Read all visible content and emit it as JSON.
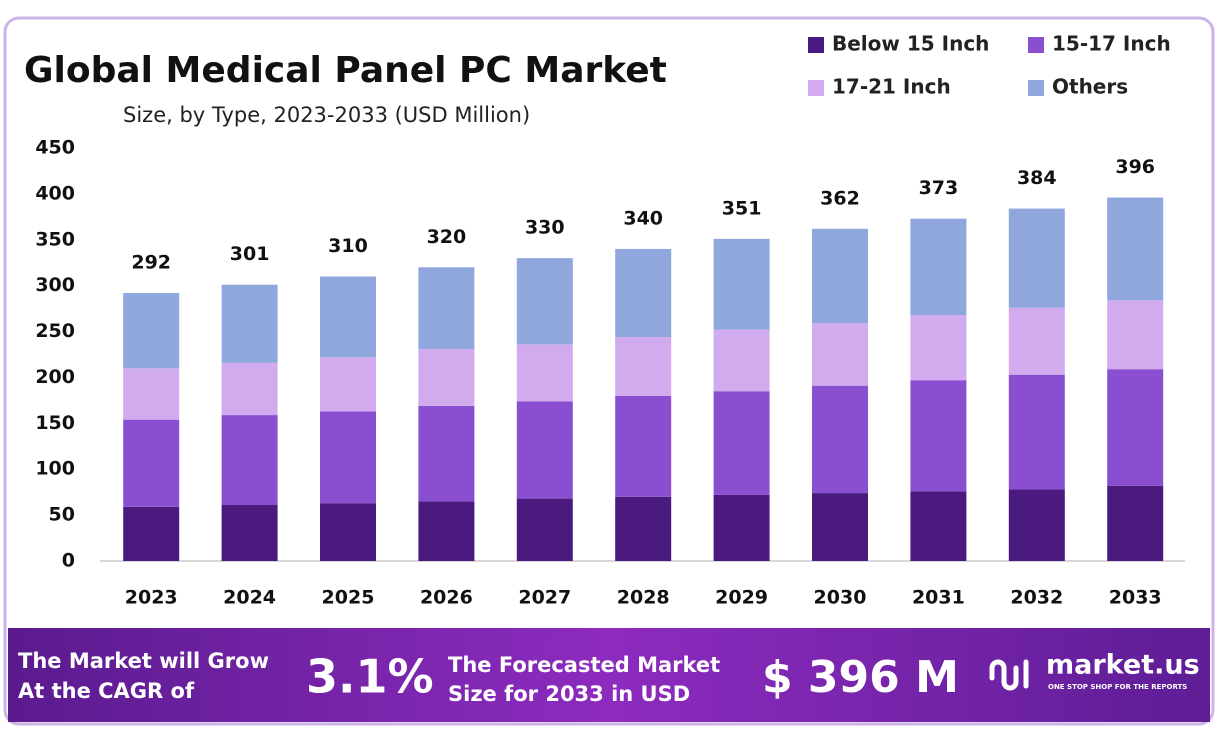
{
  "chart_data": {
    "type": "stacked_bar",
    "title": "Global Medical Panel PC Market",
    "subtitle": "Size, by Type, 2023-2033 (USD Million)",
    "categories": [
      "2023",
      "2024",
      "2025",
      "2026",
      "2027",
      "2028",
      "2029",
      "2030",
      "2031",
      "2032",
      "2033"
    ],
    "series": [
      {
        "name": "Below 15 Inch",
        "color": "#4b1a7e",
        "values": [
          59,
          61,
          63,
          65,
          68,
          70,
          72,
          74,
          76,
          78,
          82
        ]
      },
      {
        "name": "15-17 Inch",
        "color": "#8a4fd0",
        "values": [
          95,
          98,
          100,
          104,
          106,
          110,
          113,
          117,
          121,
          125,
          127
        ]
      },
      {
        "name": "17-21 Inch",
        "color": "#d2aaee",
        "values": [
          56,
          57,
          59,
          62,
          62,
          64,
          67,
          68,
          71,
          73,
          75
        ]
      },
      {
        "name": "Others",
        "color": "#8fa7dc",
        "values": [
          82,
          85,
          88,
          89,
          94,
          96,
          99,
          103,
          105,
          108,
          112
        ]
      }
    ],
    "totals": [
      292,
      301,
      310,
      320,
      330,
      340,
      351,
      362,
      373,
      384,
      396
    ],
    "ylim": [
      0,
      450
    ],
    "yticks": [
      0,
      50,
      100,
      150,
      200,
      250,
      300,
      350,
      400,
      450
    ],
    "grid": false
  },
  "footer": {
    "cagr_text": [
      "The Market will Grow",
      "At the CAGR of"
    ],
    "cagr": "3.1%",
    "forecast_text": [
      "The Forecasted Market",
      "Size for 2033 in USD"
    ],
    "forecast": "$ 396 M",
    "brand": "market.us",
    "tagline": "ONE STOP SHOP FOR THE REPORTS"
  }
}
